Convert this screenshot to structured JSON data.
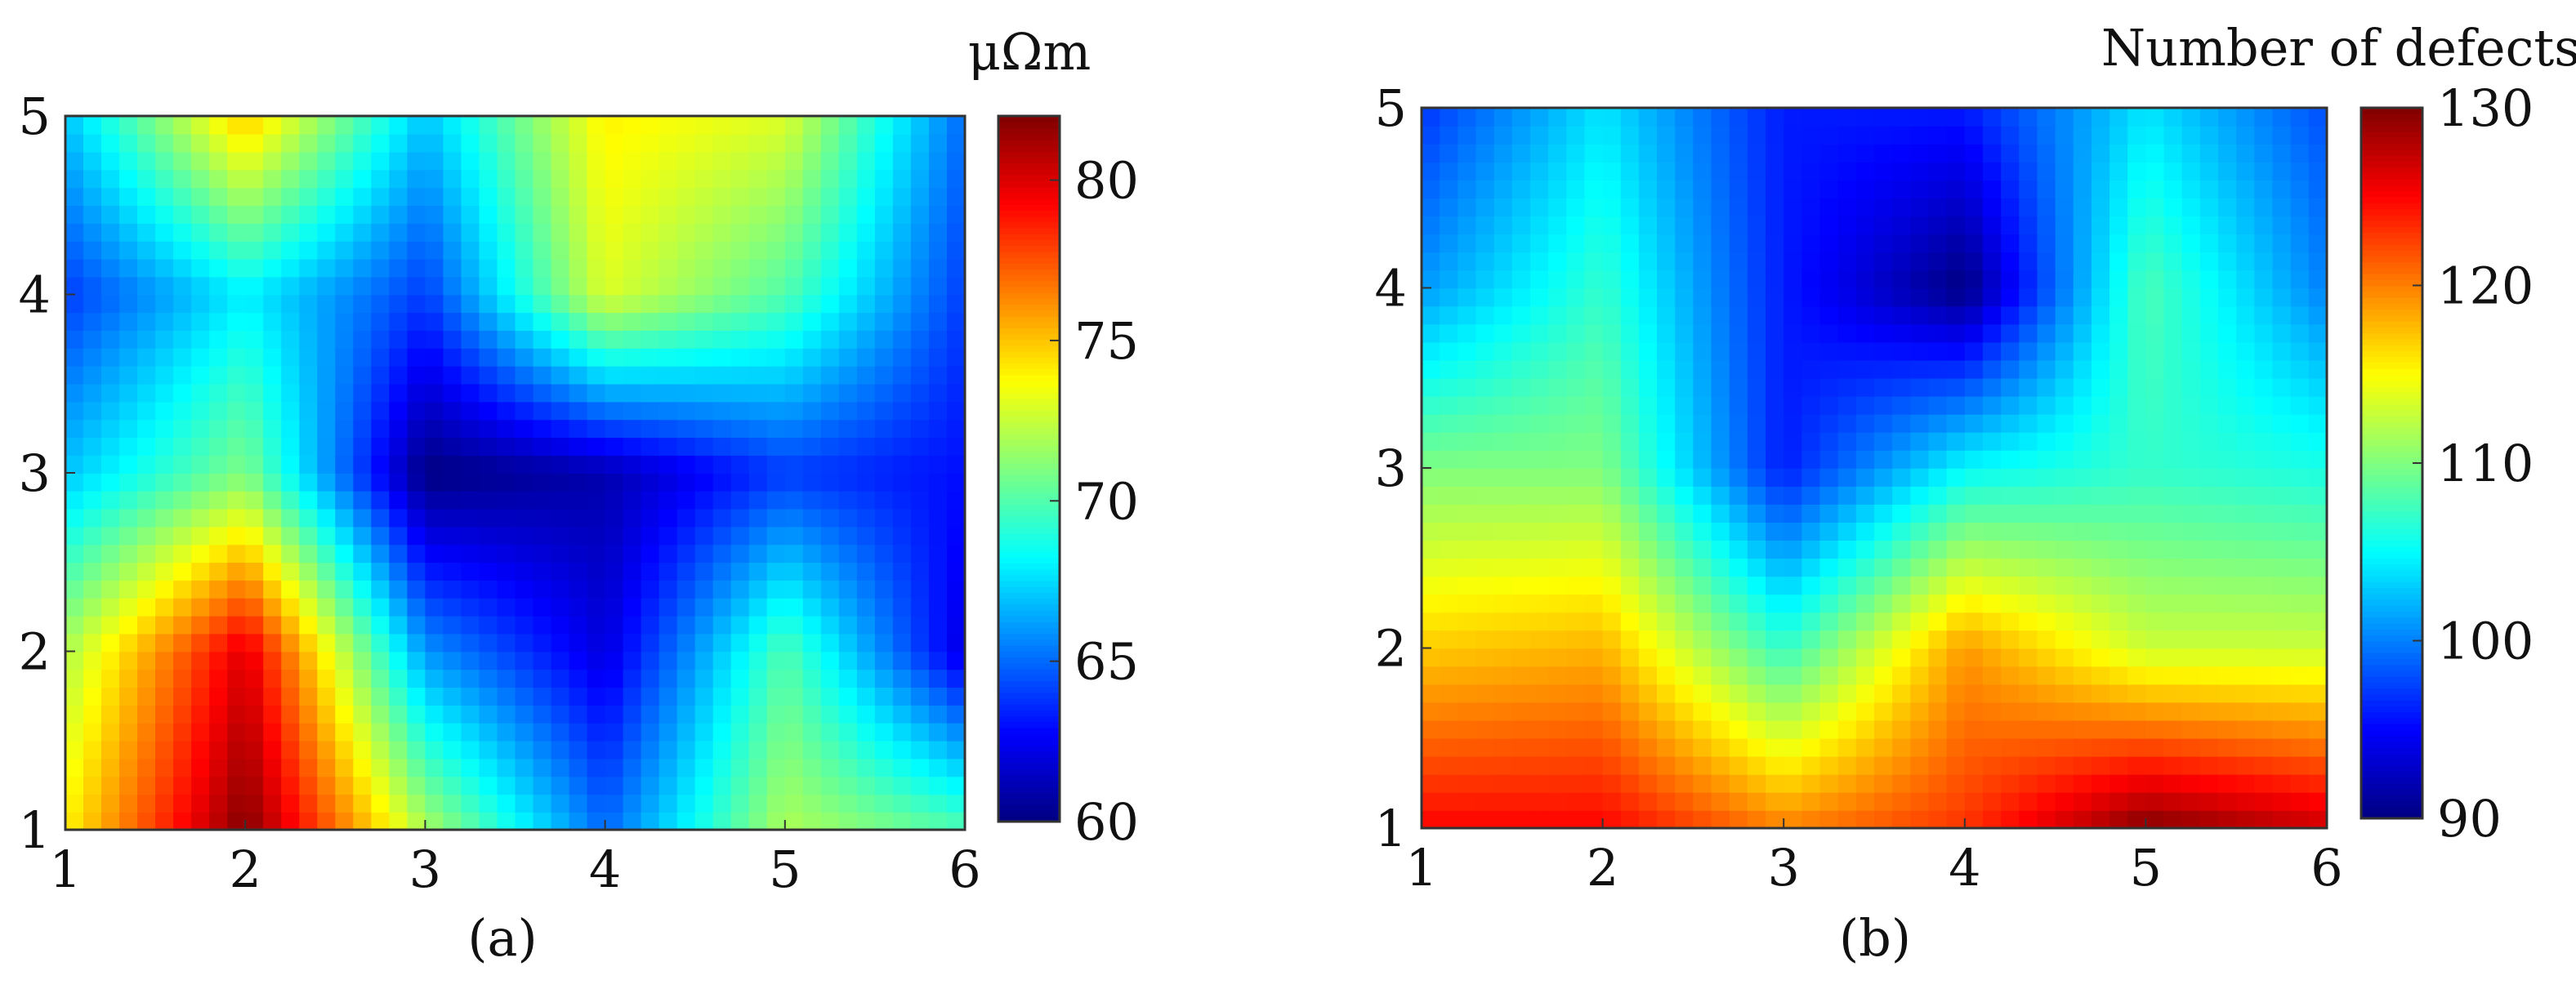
{
  "chart_data": [
    {
      "type": "heatmap",
      "panel_label": "(a)",
      "colorbar_title": "μΩm",
      "colorbar_range": [
        60,
        82
      ],
      "colorbar_ticks": [
        "60",
        "65",
        "70",
        "75",
        "80"
      ],
      "colorbar_tick_values": [
        60,
        65,
        70,
        75,
        80
      ],
      "colormap": "jet",
      "x": [
        1,
        2,
        3,
        4,
        5,
        6
      ],
      "y": [
        1,
        2,
        3,
        4,
        5
      ],
      "x_ticks": [
        "1",
        "2",
        "3",
        "4",
        "5",
        "6"
      ],
      "y_ticks": [
        "1",
        "2",
        "3",
        "4",
        "5"
      ],
      "xlim": [
        1,
        6
      ],
      "ylim": [
        1,
        5
      ],
      "grid": false,
      "z": [
        [
          74,
          82,
          72,
          65,
          72,
          70
        ],
        [
          72,
          80,
          66,
          62,
          70,
          62
        ],
        [
          67,
          71,
          60,
          61,
          64,
          63
        ],
        [
          64,
          68,
          64,
          73,
          70,
          64
        ],
        [
          67,
          75,
          67,
          74,
          73,
          65
        ]
      ]
    },
    {
      "type": "heatmap",
      "panel_label": "(b)",
      "colorbar_title": "Number of defects",
      "colorbar_range": [
        90,
        130
      ],
      "colorbar_ticks": [
        "90",
        "100",
        "110",
        "120",
        "130"
      ],
      "colorbar_tick_values": [
        90,
        100,
        110,
        120,
        130
      ],
      "colormap": "jet",
      "x": [
        1,
        2,
        3,
        4,
        5,
        6
      ],
      "y": [
        1,
        2,
        3,
        4,
        5
      ],
      "x_ticks": [
        "1",
        "2",
        "3",
        "4",
        "5",
        "6"
      ],
      "y_ticks": [
        "1",
        "2",
        "3",
        "4",
        "5"
      ],
      "xlim": [
        1,
        6
      ],
      "ylim": [
        1,
        5
      ],
      "grid": false,
      "z": [
        [
          125,
          125,
          120,
          123,
          130,
          127
        ],
        [
          117,
          118,
          107,
          119,
          113,
          113
        ],
        [
          110,
          110,
          96,
          105,
          107,
          106
        ],
        [
          101,
          107,
          96,
          90,
          108,
          100
        ],
        [
          97,
          104,
          96,
          96,
          104,
          98
        ]
      ]
    }
  ]
}
